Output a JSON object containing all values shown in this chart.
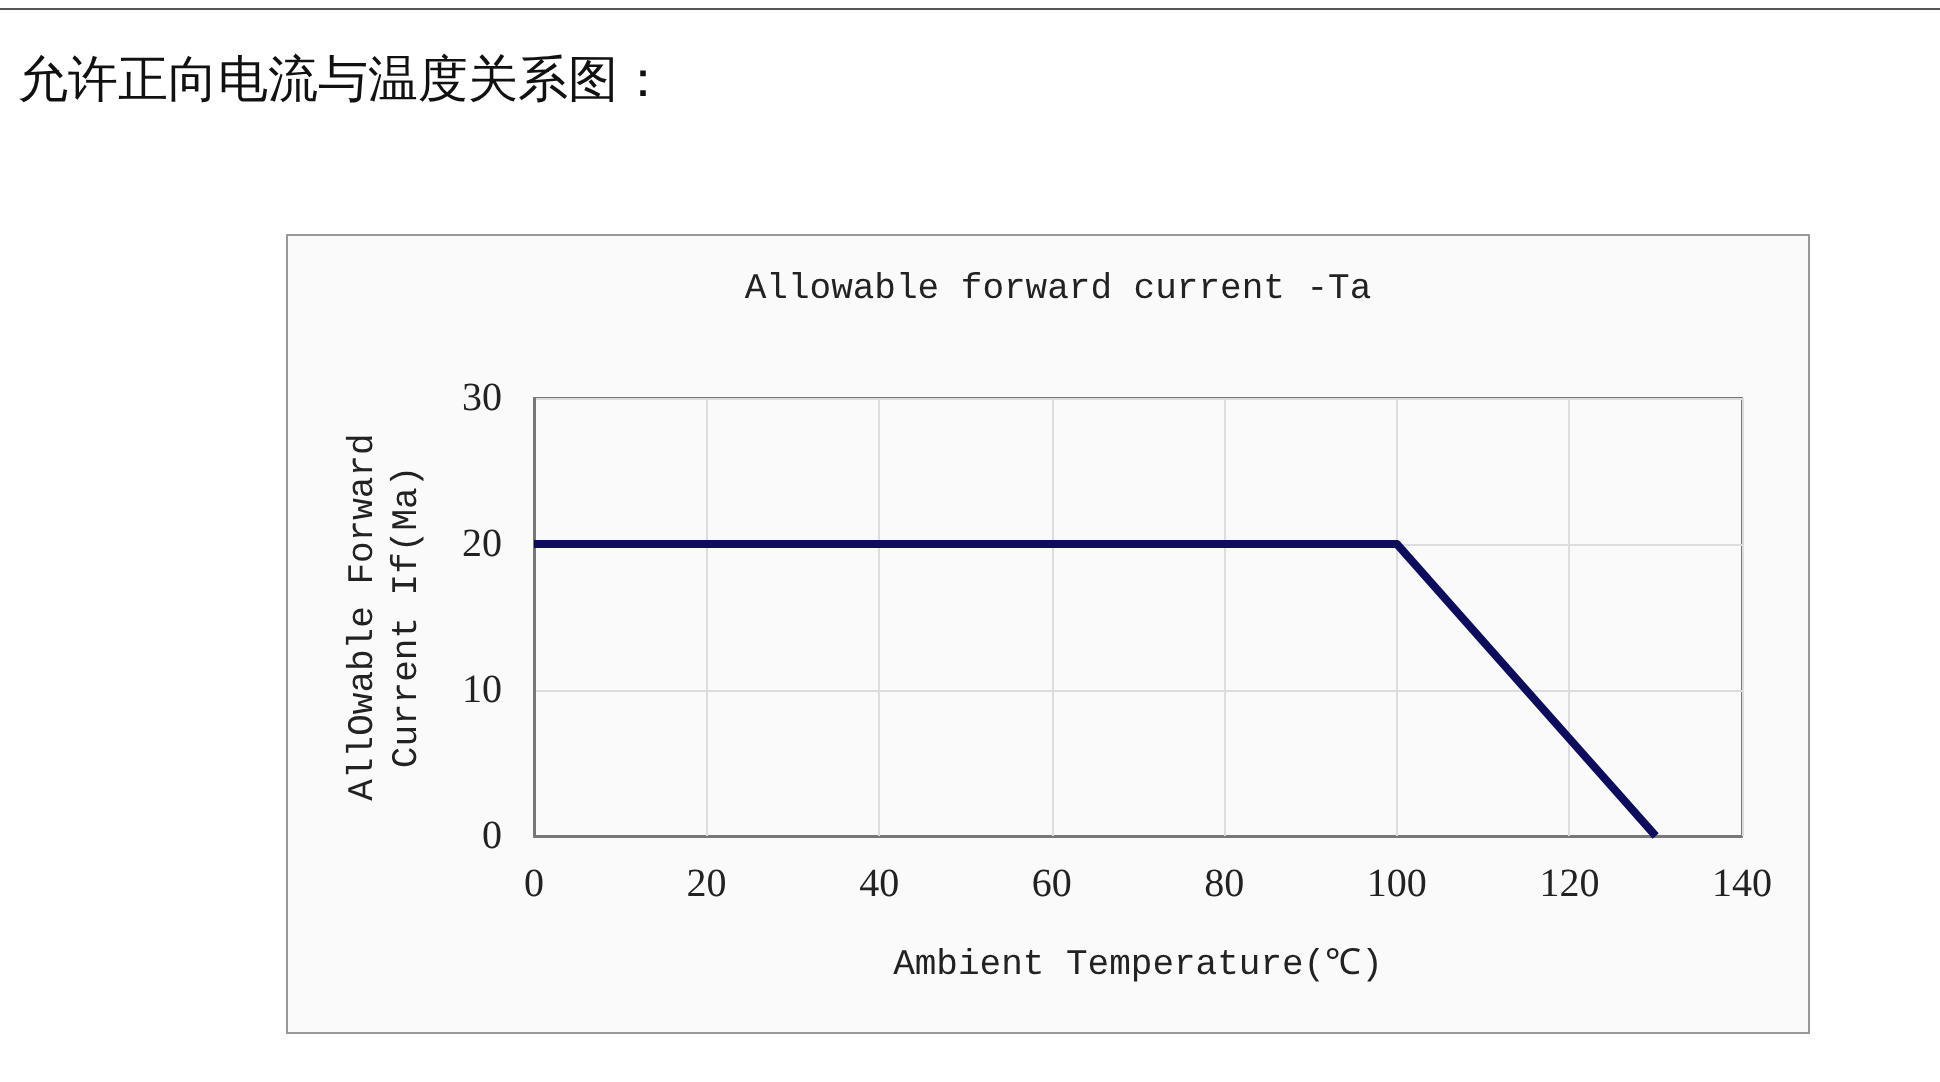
{
  "chart_data": {
    "type": "line",
    "title": "允许正向电流与温度关系图：",
    "subtitle": "Allowable forward current -Ta",
    "xlabel": "Ambient Temperature(℃)",
    "ylabel": "AllOwable Forward\nCurrent If(Ma)",
    "x": [
      0,
      100,
      130
    ],
    "values": [
      20,
      20,
      0
    ],
    "color": "#0d0d5c",
    "xlim": [
      0,
      140
    ],
    "xticks": [
      0,
      20,
      40,
      60,
      80,
      100,
      120,
      140
    ],
    "ylim": [
      0,
      30
    ],
    "yticks": [
      0,
      10,
      20,
      30
    ],
    "grid": true,
    "marker": "none",
    "line_style": "solid"
  }
}
